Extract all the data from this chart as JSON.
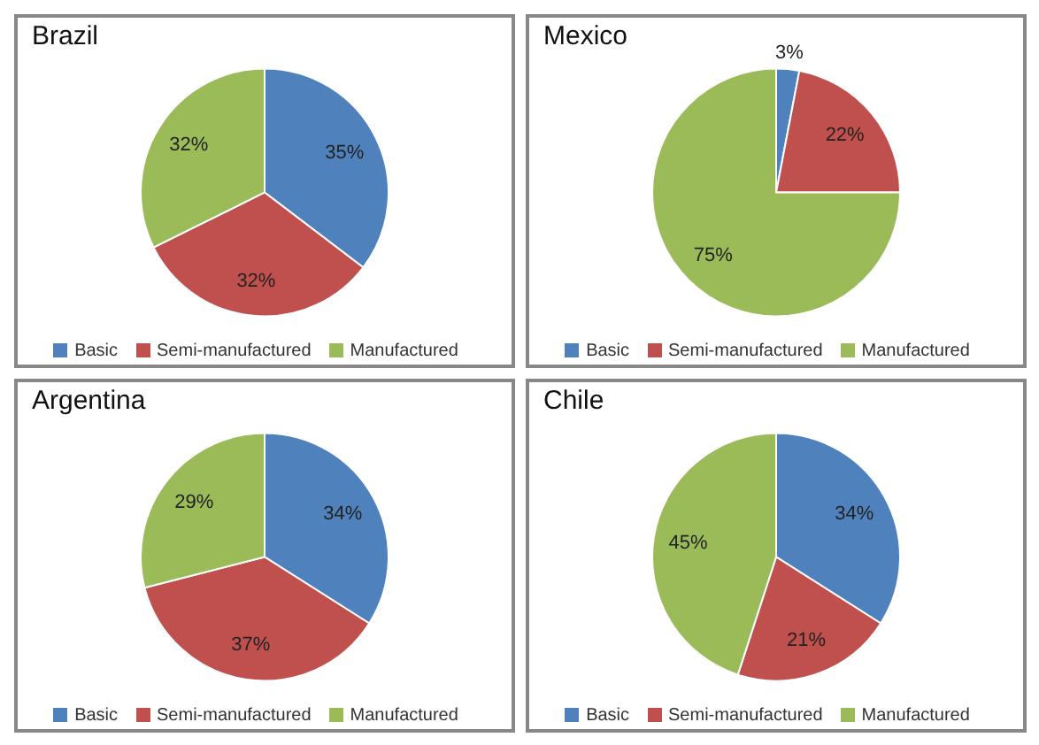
{
  "chart_data": [
    {
      "type": "pie",
      "title": "Brazil",
      "categories": [
        "Basic",
        "Semi-manufactured",
        "Manufactured"
      ],
      "values": [
        35,
        32,
        32
      ],
      "value_labels": [
        "35%",
        "32%",
        "32%"
      ],
      "colors": [
        "#4f81bd",
        "#c0504d",
        "#9bbb59"
      ],
      "legend": "bottom"
    },
    {
      "type": "pie",
      "title": "Mexico",
      "categories": [
        "Basic",
        "Semi-manufactured",
        "Manufactured"
      ],
      "values": [
        3,
        22,
        75
      ],
      "value_labels": [
        "3%",
        "22%",
        "75%"
      ],
      "colors": [
        "#4f81bd",
        "#c0504d",
        "#9bbb59"
      ],
      "legend": "bottom"
    },
    {
      "type": "pie",
      "title": "Argentina",
      "categories": [
        "Basic",
        "Semi-manufactured",
        "Manufactured"
      ],
      "values": [
        34,
        37,
        29
      ],
      "value_labels": [
        "34%",
        "37%",
        "29%"
      ],
      "colors": [
        "#4f81bd",
        "#c0504d",
        "#9bbb59"
      ],
      "legend": "bottom"
    },
    {
      "type": "pie",
      "title": "Chile",
      "categories": [
        "Basic",
        "Semi-manufactured",
        "Manufactured"
      ],
      "values": [
        34,
        21,
        45
      ],
      "value_labels": [
        "34%",
        "21%",
        "45%"
      ],
      "colors": [
        "#4f81bd",
        "#c0504d",
        "#9bbb59"
      ],
      "legend": "bottom"
    }
  ]
}
